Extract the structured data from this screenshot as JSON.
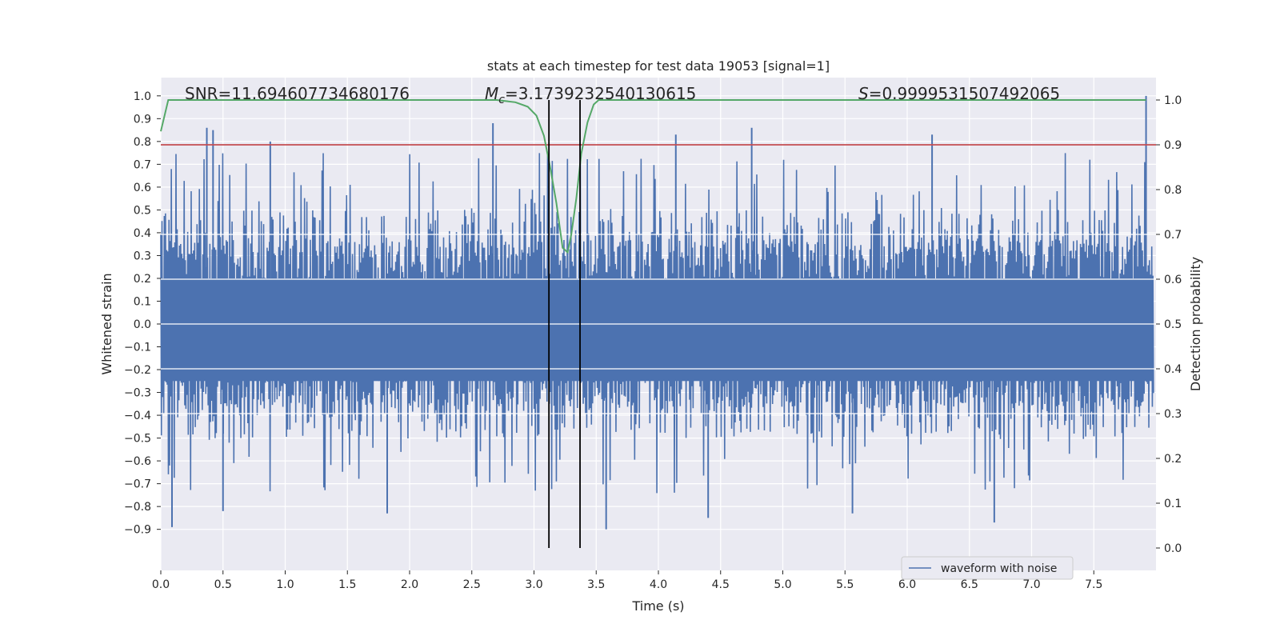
{
  "chart_data": {
    "type": "line",
    "title": "stats at each timestep for test data 19053 [signal=1]",
    "xlabel": "Time (s)",
    "ylabel": "Whitened strain",
    "ylabel_right": "Detection probability",
    "xlim": [
      0.0,
      8.0
    ],
    "ylim": [
      -1.08,
      1.08
    ],
    "ylim_right": [
      -0.05,
      1.05
    ],
    "x_ticks": [
      "0.0",
      "0.5",
      "1.0",
      "1.5",
      "2.0",
      "2.5",
      "3.0",
      "3.5",
      "4.0",
      "4.5",
      "5.0",
      "5.5",
      "6.0",
      "6.5",
      "7.0",
      "7.5"
    ],
    "y_ticks": [
      "−0.9",
      "−0.8",
      "−0.7",
      "−0.6",
      "−0.5",
      "−0.4",
      "−0.3",
      "−0.2",
      "−0.1",
      "0.0",
      "0.1",
      "0.2",
      "0.3",
      "0.4",
      "0.5",
      "0.6",
      "0.7",
      "0.8",
      "0.9",
      "1.0"
    ],
    "y_ticks_right": [
      "0.0",
      "0.1",
      "0.2",
      "0.3",
      "0.4",
      "0.5",
      "0.6",
      "0.7",
      "0.8",
      "0.9",
      "1.0"
    ],
    "grid": true,
    "legend_position": "lower-right",
    "annotations": {
      "snr_text": "SNR=11.694607734680176",
      "mc_symbol": "M",
      "mc_sub": "c",
      "mc_value": "=3.1739232540130615",
      "s_symbol": "S",
      "s_value": "=0.9999531507492065"
    },
    "series": [
      {
        "name": "waveform with noise",
        "color": "#4c72b0",
        "envelope_upper_typical": 0.45,
        "envelope_lower_typical": -0.4,
        "peak_spikes": [
          {
            "x": 0.37,
            "y": 0.86
          },
          {
            "x": 0.42,
            "y": 0.85
          },
          {
            "x": 0.88,
            "y": 0.8
          },
          {
            "x": 2.67,
            "y": 0.88
          },
          {
            "x": 4.14,
            "y": 0.83
          },
          {
            "x": 4.75,
            "y": 0.86
          },
          {
            "x": 6.2,
            "y": 0.83
          },
          {
            "x": 7.92,
            "y": 1.0
          }
        ],
        "trough_spikes": [
          {
            "x": 0.09,
            "y": -0.89
          },
          {
            "x": 0.5,
            "y": -0.82
          },
          {
            "x": 1.82,
            "y": -0.83
          },
          {
            "x": 3.58,
            "y": -0.9
          },
          {
            "x": 4.4,
            "y": -0.85
          },
          {
            "x": 5.56,
            "y": -0.83
          },
          {
            "x": 6.7,
            "y": -0.87
          }
        ]
      },
      {
        "name": "detection probability",
        "color": "#55a868",
        "axis": "right",
        "x": [
          0.0,
          0.06,
          2.7,
          2.85,
          2.95,
          3.02,
          3.08,
          3.13,
          3.18,
          3.23,
          3.27,
          3.3,
          3.34,
          3.38,
          3.43,
          3.48,
          3.52,
          7.92
        ],
        "y": [
          0.93,
          1.0,
          1.0,
          0.995,
          0.985,
          0.965,
          0.92,
          0.85,
          0.77,
          0.67,
          0.66,
          0.7,
          0.78,
          0.88,
          0.95,
          0.99,
          1.0,
          1.0
        ]
      }
    ],
    "threshold": {
      "axis": "right",
      "value": 0.9,
      "color": "#c44e52"
    },
    "vertical_lines": {
      "x": [
        3.12,
        3.37
      ],
      "color": "#000000"
    }
  }
}
